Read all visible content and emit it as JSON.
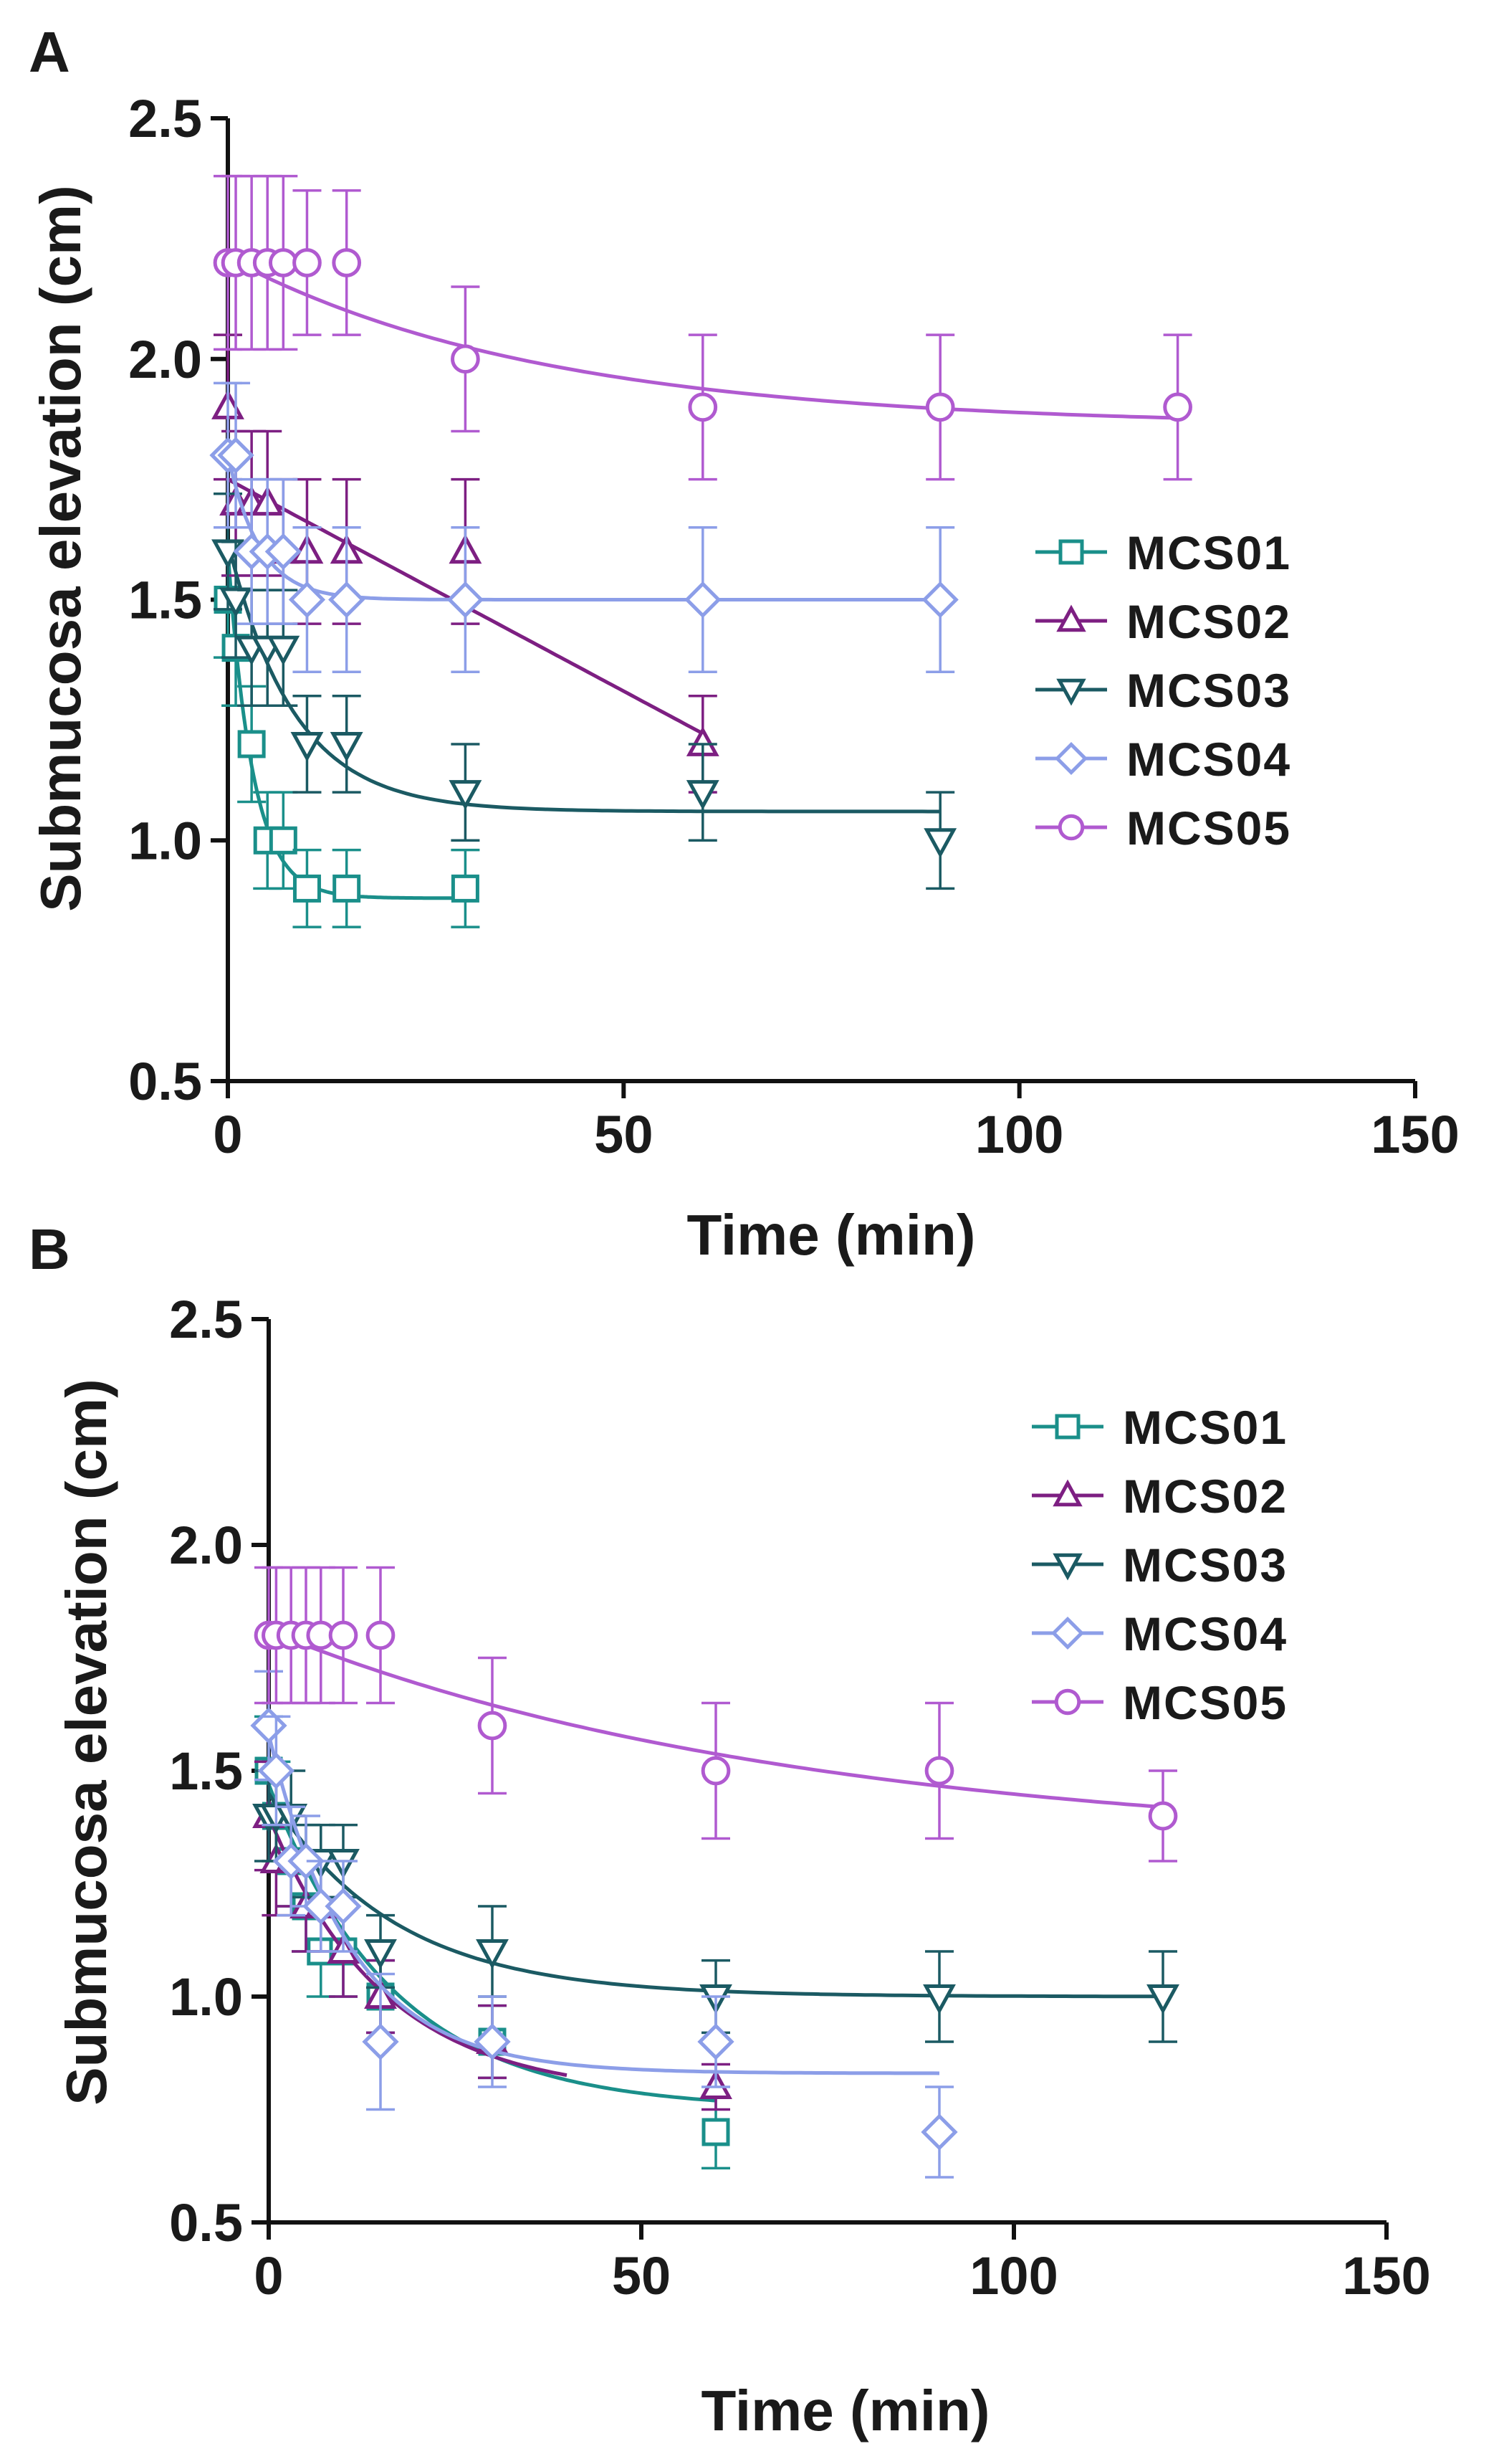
{
  "chart_data": [
    {
      "panel": "A",
      "type": "scatter",
      "xlabel": "Time (min)",
      "ylabel": "Submucosa elevation (cm)",
      "xlim": [
        0,
        150
      ],
      "ylim": [
        0.5,
        2.5
      ],
      "xticks": [
        "0",
        "50",
        "100",
        "150"
      ],
      "yticks": [
        "0.5",
        "1.0",
        "1.5",
        "2.0",
        "2.5"
      ],
      "legend_position": "right-middle",
      "series": [
        {
          "name": "MCS01",
          "color": "#1a8f8a",
          "marker": "square",
          "x": [
            0,
            1,
            3,
            5,
            7,
            10,
            15,
            30
          ],
          "y": [
            1.5,
            1.4,
            1.2,
            1.0,
            1.0,
            0.9,
            0.9,
            0.9
          ],
          "err": [
            0.12,
            0.12,
            0.12,
            0.1,
            0.1,
            0.08,
            0.08,
            0.08
          ],
          "fit": {
            "kind": "exp",
            "plateau": 0.88,
            "span": 0.72,
            "k": 0.32,
            "xmax": 30
          }
        },
        {
          "name": "MCS02",
          "color": "#7d1f82",
          "marker": "triangle-up",
          "x": [
            0,
            1,
            3,
            5,
            7,
            10,
            15,
            30,
            60
          ],
          "y": [
            1.9,
            1.7,
            1.7,
            1.7,
            1.6,
            1.6,
            1.6,
            1.6,
            1.2
          ],
          "err": [
            0.15,
            0.15,
            0.15,
            0.15,
            0.15,
            0.15,
            0.15,
            0.15,
            0.1
          ],
          "fit": {
            "kind": "linear",
            "y0": 1.75,
            "slope": -0.0088,
            "xmax": 60
          }
        },
        {
          "name": "MCS03",
          "color": "#1b5a63",
          "marker": "triangle-down",
          "x": [
            0,
            1,
            3,
            5,
            7,
            10,
            15,
            30,
            60,
            90
          ],
          "y": [
            1.6,
            1.5,
            1.4,
            1.4,
            1.4,
            1.2,
            1.2,
            1.1,
            1.1,
            1.0
          ],
          "err": [
            0.12,
            0.12,
            0.12,
            0.12,
            0.12,
            0.1,
            0.1,
            0.1,
            0.1,
            0.1
          ],
          "fit": {
            "kind": "exp",
            "plateau": 1.06,
            "span": 0.56,
            "k": 0.12,
            "xmax": 90
          }
        },
        {
          "name": "MCS04",
          "color": "#8c9ee8",
          "marker": "diamond",
          "x": [
            0,
            1,
            3,
            5,
            7,
            10,
            15,
            30,
            60,
            90
          ],
          "y": [
            1.8,
            1.8,
            1.6,
            1.6,
            1.6,
            1.5,
            1.5,
            1.5,
            1.5,
            1.5
          ],
          "err": [
            0.15,
            0.15,
            0.15,
            0.15,
            0.15,
            0.15,
            0.15,
            0.15,
            0.15,
            0.15
          ],
          "fit": {
            "kind": "exp",
            "plateau": 1.5,
            "span": 0.3,
            "k": 0.25,
            "xmax": 90
          }
        },
        {
          "name": "MCS05",
          "color": "#b05ad0",
          "marker": "circle",
          "x": [
            0,
            1,
            3,
            5,
            7,
            10,
            15,
            30,
            60,
            90,
            120
          ],
          "y": [
            2.2,
            2.2,
            2.2,
            2.2,
            2.2,
            2.2,
            2.2,
            2.0,
            1.9,
            1.9,
            1.9
          ],
          "err": [
            0.18,
            0.18,
            0.18,
            0.18,
            0.18,
            0.15,
            0.15,
            0.15,
            0.15,
            0.15,
            0.15
          ],
          "fit": {
            "kind": "exp",
            "plateau": 1.86,
            "span": 0.35,
            "k": 0.025,
            "xmax": 120
          }
        }
      ]
    },
    {
      "panel": "B",
      "type": "scatter",
      "xlabel": "Time (min)",
      "ylabel": "Submucosa elevation (cm)",
      "xlim": [
        0,
        150
      ],
      "ylim": [
        0.5,
        2.5
      ],
      "xticks": [
        "0",
        "50",
        "100",
        "150"
      ],
      "yticks": [
        "0.5",
        "1.0",
        "1.5",
        "2.0",
        "2.5"
      ],
      "legend_position": "top-right",
      "series": [
        {
          "name": "MCS01",
          "color": "#1a8f8a",
          "marker": "square",
          "x": [
            0,
            1,
            3,
            5,
            7,
            10,
            15,
            30,
            60
          ],
          "y": [
            1.5,
            1.4,
            1.3,
            1.2,
            1.1,
            1.1,
            1.0,
            0.9,
            0.7
          ],
          "err": [
            0.12,
            0.12,
            0.1,
            0.1,
            0.1,
            0.1,
            0.08,
            0.08,
            0.08
          ],
          "fit": {
            "kind": "exp",
            "plateau": 0.75,
            "span": 0.72,
            "k": 0.06,
            "xmax": 60
          }
        },
        {
          "name": "MCS02",
          "color": "#7d1f82",
          "marker": "triangle-up",
          "x": [
            0,
            1,
            3,
            5,
            7,
            10,
            15,
            30,
            60
          ],
          "y": [
            1.4,
            1.3,
            1.3,
            1.2,
            1.2,
            1.1,
            1.0,
            0.9,
            0.8
          ],
          "err": [
            0.12,
            0.12,
            0.1,
            0.1,
            0.1,
            0.1,
            0.08,
            0.08,
            0.05
          ],
          "fit": {
            "kind": "exp",
            "plateau": 0.78,
            "span": 0.62,
            "k": 0.065,
            "xmax": 40
          }
        },
        {
          "name": "MCS03",
          "color": "#1b5a63",
          "marker": "triangle-down",
          "x": [
            0,
            1,
            3,
            5,
            7,
            10,
            15,
            30,
            60,
            90,
            120
          ],
          "y": [
            1.4,
            1.4,
            1.4,
            1.3,
            1.3,
            1.3,
            1.1,
            1.1,
            1.0,
            1.0,
            1.0
          ],
          "err": [
            0.1,
            0.1,
            0.1,
            0.08,
            0.08,
            0.08,
            0.08,
            0.1,
            0.08,
            0.1,
            0.1
          ],
          "fit": {
            "kind": "exp",
            "plateau": 1.0,
            "span": 0.45,
            "k": 0.06,
            "xmax": 120
          }
        },
        {
          "name": "MCS04",
          "color": "#8c9ee8",
          "marker": "diamond",
          "x": [
            0,
            1,
            3,
            5,
            7,
            10,
            15,
            30,
            60,
            90
          ],
          "y": [
            1.6,
            1.5,
            1.3,
            1.3,
            1.2,
            1.2,
            0.9,
            0.9,
            0.9,
            0.7
          ],
          "err": [
            0.12,
            0.12,
            0.12,
            0.1,
            0.1,
            0.1,
            0.15,
            0.1,
            0.1,
            0.1
          ],
          "fit": {
            "kind": "exp",
            "plateau": 0.83,
            "span": 0.75,
            "k": 0.09,
            "xmax": 90
          }
        },
        {
          "name": "MCS05",
          "color": "#b05ad0",
          "marker": "circle",
          "x": [
            0,
            1,
            3,
            5,
            7,
            10,
            15,
            30,
            60,
            90,
            120
          ],
          "y": [
            1.8,
            1.8,
            1.8,
            1.8,
            1.8,
            1.8,
            1.8,
            1.6,
            1.5,
            1.5,
            1.4
          ],
          "err": [
            0.15,
            0.15,
            0.15,
            0.15,
            0.15,
            0.15,
            0.15,
            0.15,
            0.15,
            0.15,
            0.1
          ],
          "fit": {
            "kind": "exp",
            "plateau": 1.33,
            "span": 0.48,
            "k": 0.014,
            "xmax": 120
          }
        }
      ]
    }
  ]
}
